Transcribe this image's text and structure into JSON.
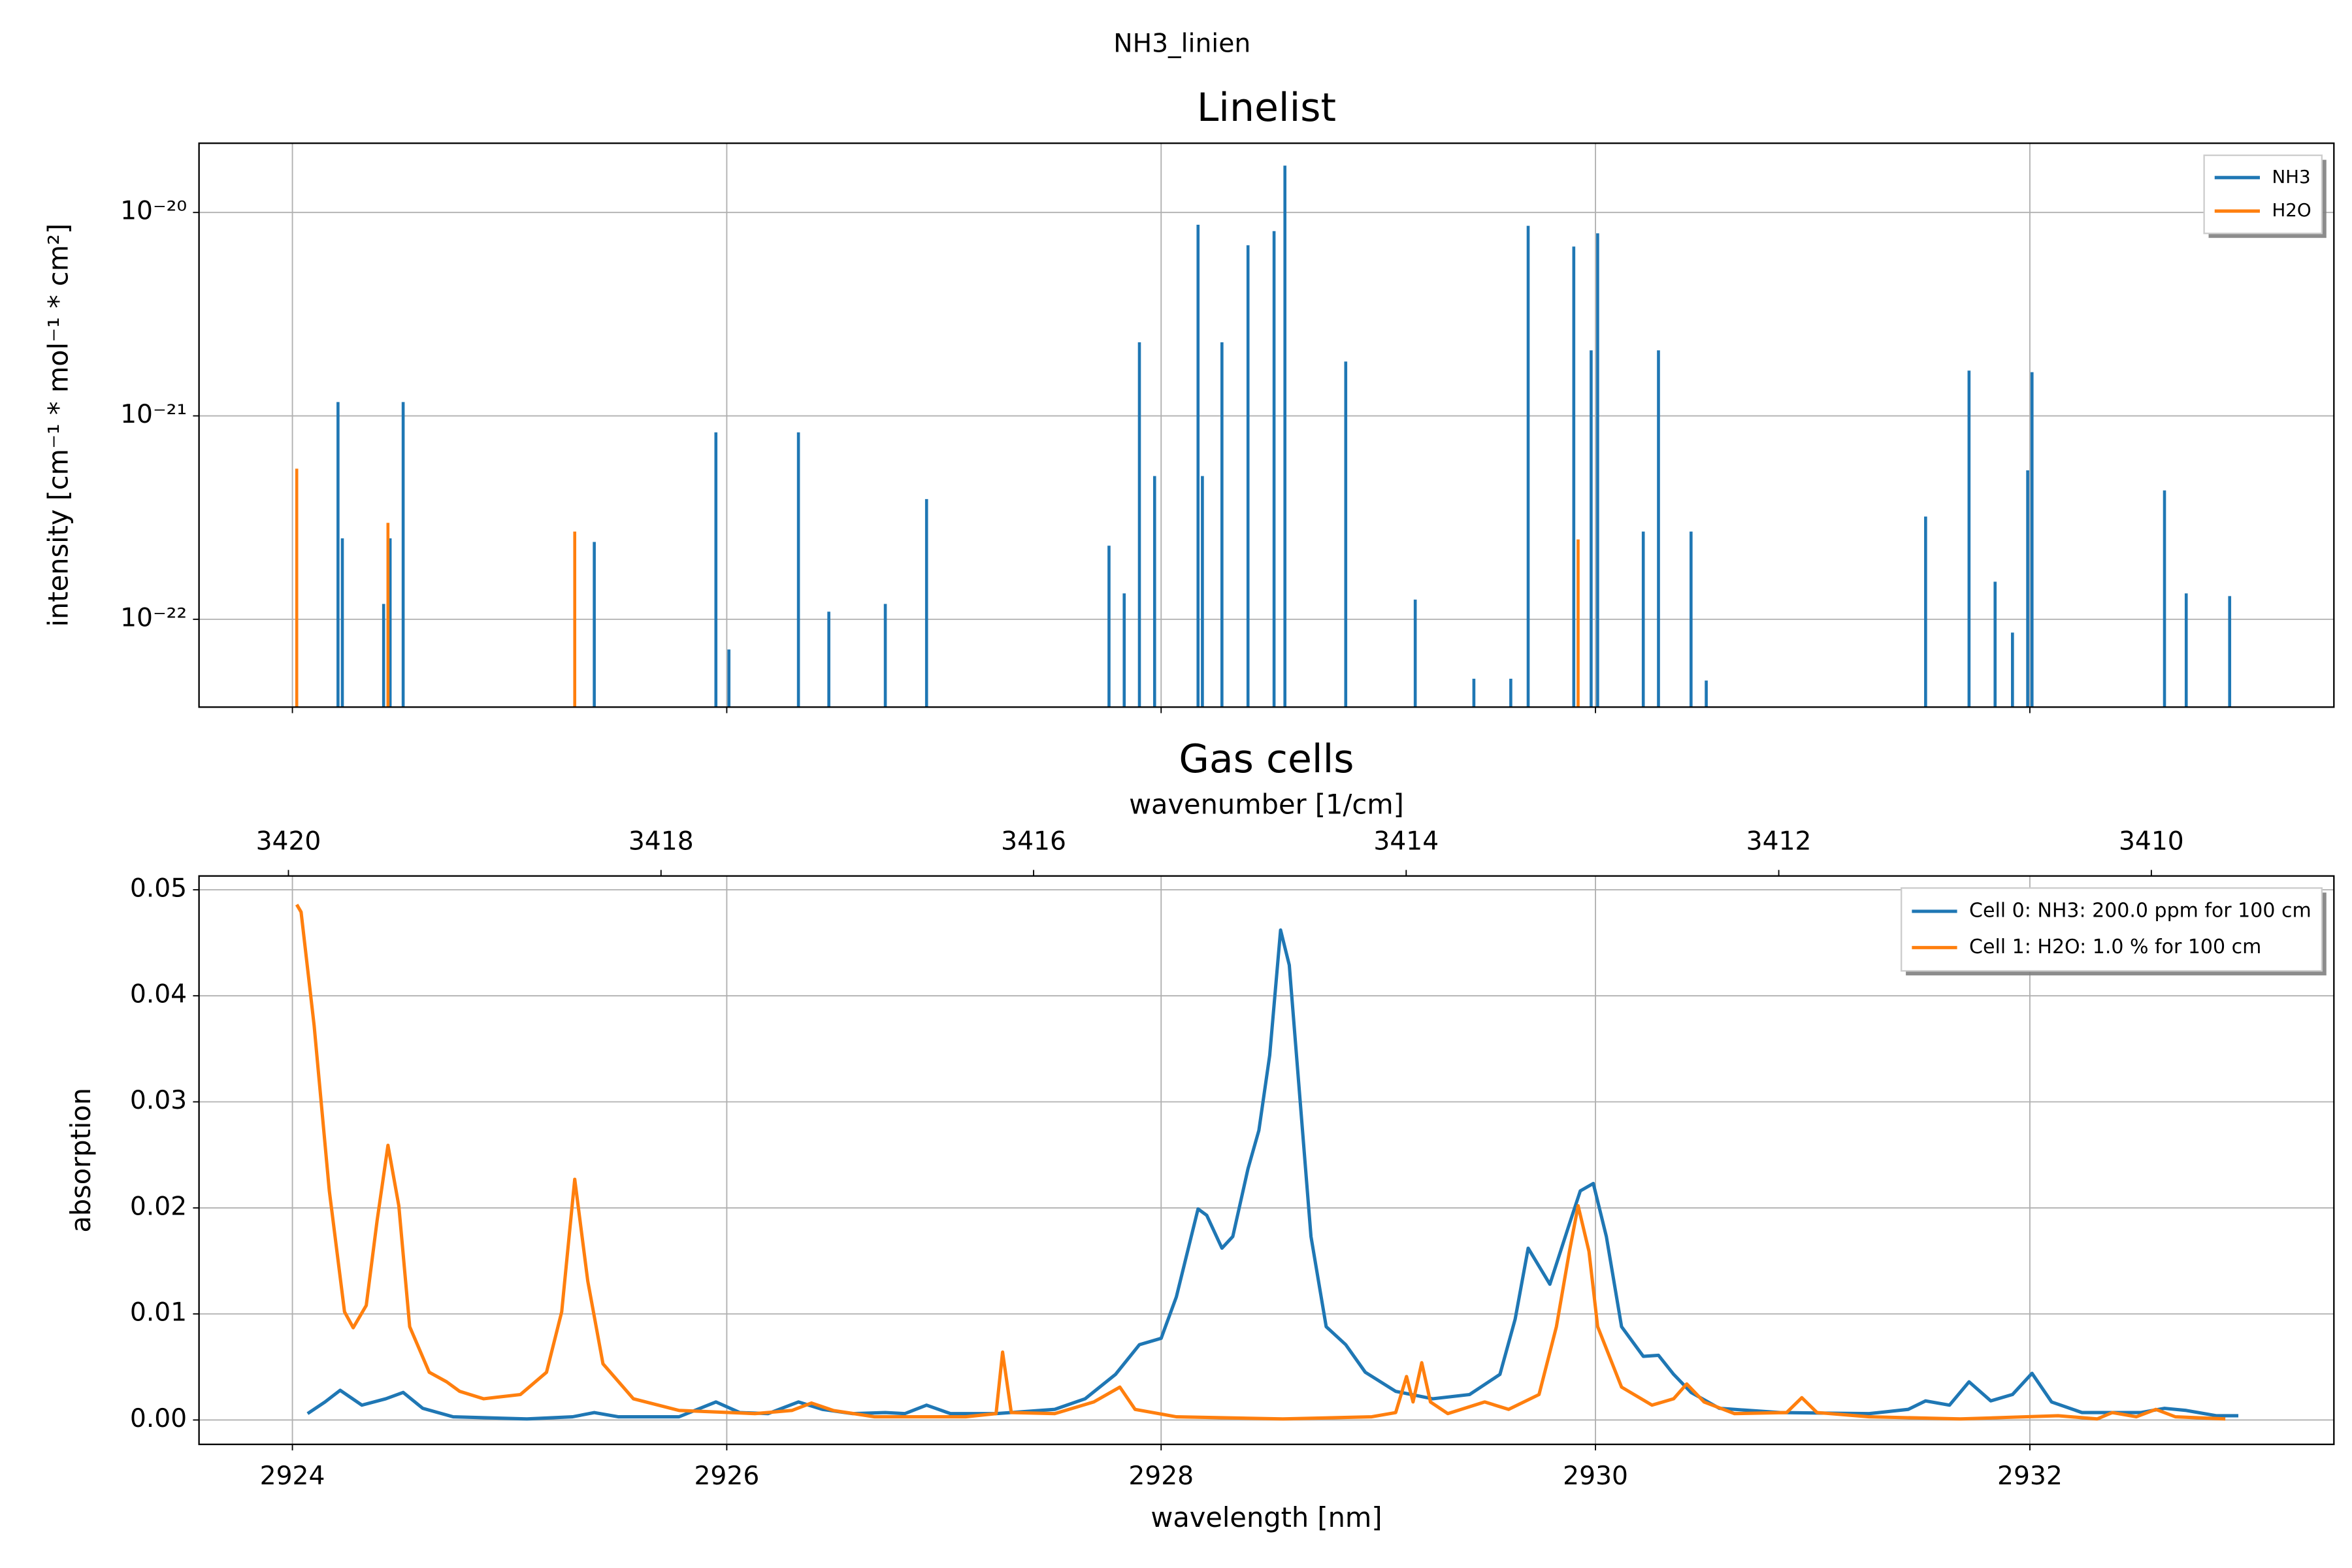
{
  "title": "NH3_linien",
  "chart_data": [
    {
      "type": "stem",
      "title": "Linelist",
      "ylabel": "intensity [cm⁻¹ * mol⁻¹ * cm²]",
      "xlim": [
        2923.57,
        2933.4
      ],
      "xticks": [
        2924,
        2926,
        2928,
        2930,
        2932
      ],
      "yscale": "log",
      "ylim": [
        3.7e-23,
        2.19e-20
      ],
      "yticks": [
        {
          "value": 1e-22,
          "label": "10⁻²²"
        },
        {
          "value": 1e-21,
          "label": "10⁻²¹"
        },
        {
          "value": 1e-20,
          "label": "10⁻²⁰"
        }
      ],
      "grid": true,
      "legend": "upper right",
      "series": [
        {
          "name": "NH3",
          "color": "#1f77b4",
          "x": [
            2924.21,
            2924.23,
            2924.42,
            2924.45,
            2924.51,
            2925.39,
            2925.95,
            2926.01,
            2926.33,
            2926.47,
            2926.73,
            2926.92,
            2927.76,
            2927.83,
            2927.9,
            2927.97,
            2928.17,
            2928.19,
            2928.28,
            2928.4,
            2928.52,
            2928.57,
            2928.85,
            2929.17,
            2929.44,
            2929.61,
            2929.69,
            2929.9,
            2929.98,
            2930.01,
            2930.22,
            2930.29,
            2930.44,
            2930.51,
            2931.52,
            2931.72,
            2931.84,
            2931.92,
            2931.99,
            2932.01,
            2932.62,
            2932.72,
            2932.92
          ],
          "values": [
            1.17e-21,
            2.5e-22,
            1.19e-22,
            2.5e-22,
            1.17e-21,
            2.4e-22,
            8.3e-22,
            7.1e-23,
            8.3e-22,
            1.09e-22,
            1.19e-22,
            3.9e-22,
            2.3e-22,
            1.34e-22,
            2.3e-21,
            5.06e-22,
            8.7e-21,
            5.06e-22,
            2.3e-21,
            6.9e-21,
            8.1e-21,
            1.7e-20,
            1.85e-21,
            1.25e-22,
            5.1e-23,
            5.1e-23,
            8.6e-21,
            6.8e-21,
            2.1e-21,
            7.9e-21,
            2.7e-22,
            2.1e-21,
            2.7e-22,
            5e-23,
            3.2e-22,
            1.67e-21,
            1.53e-22,
            8.6e-23,
            5.4e-22,
            1.64e-21,
            4.3e-22,
            1.34e-22,
            1.3e-22
          ]
        },
        {
          "name": "H2O",
          "color": "#ff7f0e",
          "x": [
            2924.02,
            2924.44,
            2925.3,
            2929.92
          ],
          "values": [
            5.5e-22,
            2.98e-22,
            2.7e-22,
            2.47e-22
          ]
        }
      ]
    },
    {
      "type": "line",
      "title": "Gas cells",
      "xlabel": "wavelength [nm]",
      "ylabel": "absorption",
      "x2label": "wavenumber [1/cm]",
      "x2lim": [
        3420.48,
        3409.02
      ],
      "x2ticks": [
        3420,
        3418,
        3416,
        3414,
        3412,
        3410
      ],
      "xlim": [
        2923.57,
        2933.4
      ],
      "xticks": [
        2924,
        2926,
        2928,
        2930,
        2932
      ],
      "ylim": [
        -0.0023,
        0.0513
      ],
      "yticks": [
        {
          "value": 0,
          "label": "0.00"
        },
        {
          "value": 0.01,
          "label": "0.01"
        },
        {
          "value": 0.02,
          "label": "0.02"
        },
        {
          "value": 0.03,
          "label": "0.03"
        },
        {
          "value": 0.04,
          "label": "0.04"
        },
        {
          "value": 0.05,
          "label": "0.05"
        }
      ],
      "grid": true,
      "legend": "upper right",
      "series": [
        {
          "name": "Cell 0: NH3: 200.0 ppm for 100 cm",
          "color": "#1f77b4",
          "x": [
            2924.07,
            2924.15,
            2924.22,
            2924.32,
            2924.43,
            2924.51,
            2924.6,
            2924.74,
            2925.08,
            2925.29,
            2925.39,
            2925.5,
            2925.78,
            2925.95,
            2926.06,
            2926.19,
            2926.33,
            2926.44,
            2926.58,
            2926.73,
            2926.82,
            2926.92,
            2927.03,
            2927.24,
            2927.51,
            2927.65,
            2927.79,
            2927.9,
            2928.0,
            2928.07,
            2928.17,
            2928.21,
            2928.28,
            2928.33,
            2928.4,
            2928.45,
            2928.5,
            2928.55,
            2928.59,
            2928.64,
            2928.69,
            2928.76,
            2928.85,
            2928.94,
            2929.08,
            2929.25,
            2929.42,
            2929.56,
            2929.63,
            2929.69,
            2929.74,
            2929.79,
            2929.88,
            2929.93,
            2929.99,
            2930.05,
            2930.12,
            2930.22,
            2930.29,
            2930.36,
            2930.44,
            2930.57,
            2930.85,
            2931.26,
            2931.44,
            2931.52,
            2931.63,
            2931.72,
            2931.82,
            2931.92,
            2932.01,
            2932.1,
            2932.24,
            2932.51,
            2932.62,
            2932.72,
            2932.86,
            2932.96
          ],
          "values": [
            0.0006,
            0.0017,
            0.0028,
            0.0014,
            0.002,
            0.0026,
            0.0011,
            0.0003,
            0.0001,
            0.0003,
            0.0007,
            0.0003,
            0.0003,
            0.0017,
            0.0007,
            0.0006,
            0.0017,
            0.001,
            0.0006,
            0.0007,
            0.0006,
            0.0014,
            0.0006,
            0.0006,
            0.001,
            0.002,
            0.0043,
            0.0071,
            0.0077,
            0.0116,
            0.0199,
            0.0193,
            0.0162,
            0.0173,
            0.0237,
            0.0273,
            0.0344,
            0.0462,
            0.0429,
            0.0301,
            0.0173,
            0.0088,
            0.0071,
            0.0045,
            0.0027,
            0.002,
            0.0024,
            0.0043,
            0.0095,
            0.0162,
            0.0145,
            0.0128,
            0.0185,
            0.0216,
            0.0223,
            0.0173,
            0.0088,
            0.006,
            0.0061,
            0.0043,
            0.0026,
            0.0011,
            0.0007,
            0.0006,
            0.001,
            0.0018,
            0.0014,
            0.0036,
            0.0018,
            0.0024,
            0.0044,
            0.0017,
            0.0007,
            0.0007,
            0.0011,
            0.0009,
            0.0004,
            0.0004
          ]
        },
        {
          "name": "Cell 1: H2O: 1.0 % for 100 cm",
          "color": "#ff7f0e",
          "x": [
            2924.02,
            2924.04,
            2924.1,
            2924.17,
            2924.24,
            2924.28,
            2924.34,
            2924.39,
            2924.44,
            2924.49,
            2924.54,
            2924.63,
            2924.71,
            2924.77,
            2924.88,
            2925.05,
            2925.17,
            2925.24,
            2925.3,
            2925.36,
            2925.43,
            2925.57,
            2925.78,
            2926.13,
            2926.3,
            2926.39,
            2926.49,
            2926.68,
            2927.1,
            2927.24,
            2927.27,
            2927.31,
            2927.51,
            2927.69,
            2927.81,
            2927.88,
            2928.07,
            2928.56,
            2928.97,
            2929.08,
            2929.13,
            2929.16,
            2929.2,
            2929.24,
            2929.32,
            2929.49,
            2929.6,
            2929.74,
            2929.82,
            2929.88,
            2929.92,
            2929.97,
            2930.01,
            2930.12,
            2930.26,
            2930.36,
            2930.42,
            2930.5,
            2930.64,
            2930.88,
            2930.95,
            2931.02,
            2931.26,
            2931.68,
            2932.13,
            2932.31,
            2932.38,
            2932.49,
            2932.58,
            2932.67,
            2932.9
          ],
          "values": [
            0.0486,
            0.0479,
            0.0372,
            0.0216,
            0.0102,
            0.0087,
            0.0108,
            0.0188,
            0.0259,
            0.0202,
            0.0088,
            0.0045,
            0.0036,
            0.0027,
            0.002,
            0.0024,
            0.0045,
            0.0102,
            0.0227,
            0.0131,
            0.0053,
            0.002,
            0.0009,
            0.0006,
            0.0009,
            0.0016,
            0.0009,
            0.0003,
            0.0003,
            0.0006,
            0.0064,
            0.0007,
            0.0006,
            0.0017,
            0.0031,
            0.001,
            0.0003,
            0.0001,
            0.0003,
            0.0007,
            0.0041,
            0.0017,
            0.0054,
            0.0017,
            0.0006,
            0.0017,
            0.001,
            0.0024,
            0.0088,
            0.0159,
            0.0202,
            0.0159,
            0.0088,
            0.0031,
            0.0014,
            0.002,
            0.0034,
            0.0017,
            0.0006,
            0.0007,
            0.0021,
            0.0007,
            0.0003,
            0.0001,
            0.0004,
            0.0001,
            0.0007,
            0.0003,
            0.001,
            0.0003,
            0.0001
          ]
        }
      ]
    }
  ]
}
